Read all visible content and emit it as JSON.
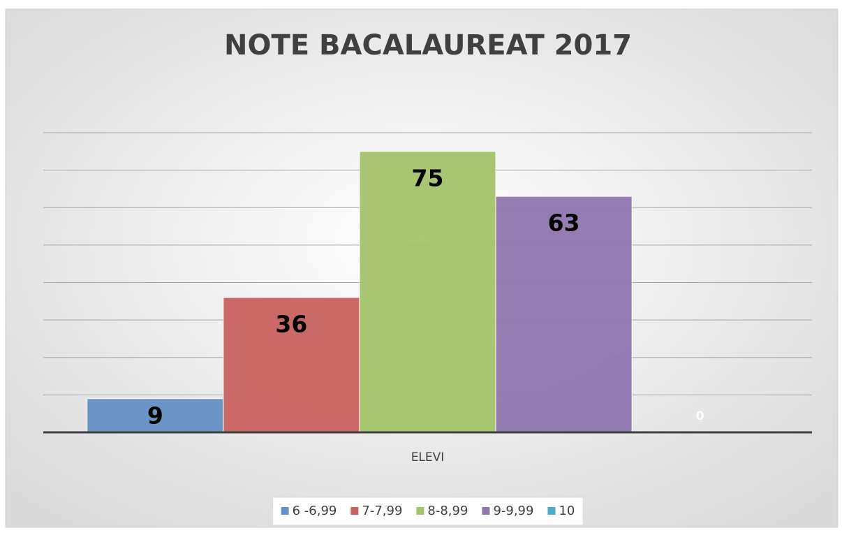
{
  "chart_data": {
    "type": "bar",
    "title": "NOTE BACALAUREAT 2017",
    "categories": [
      "ELEVI"
    ],
    "series": [
      {
        "name": "6 -6,99",
        "color": "#6591c6",
        "values": [
          9
        ]
      },
      {
        "name": "7-7,99",
        "color": "#c8625f",
        "values": [
          36
        ]
      },
      {
        "name": "8-8,99",
        "color": "#a5c36a",
        "values": [
          75
        ]
      },
      {
        "name": "9-9,99",
        "color": "#8f77ae",
        "values": [
          63
        ]
      },
      {
        "name": "10",
        "color": "#4bacc6",
        "values": [
          0
        ]
      }
    ],
    "ylim": [
      0,
      80
    ],
    "yticks": [
      0,
      10,
      20,
      30,
      40,
      50,
      60,
      70,
      80
    ],
    "grid": true,
    "legend": "bottom"
  }
}
